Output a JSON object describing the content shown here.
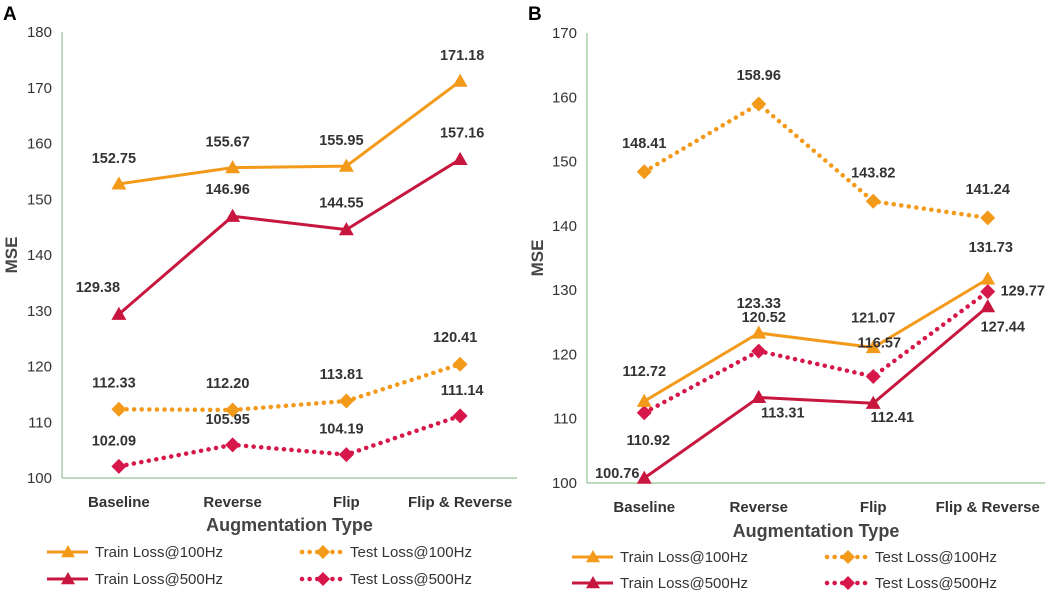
{
  "chart_data": [
    {
      "panel": "A",
      "type": "line",
      "categories": [
        "Baseline",
        "Reverse",
        "Flip",
        "Flip & Reverse"
      ],
      "xlabel": "Augmentation Type",
      "ylabel": "MSE",
      "ylim": [
        100,
        180
      ],
      "yticks": [
        100,
        110,
        120,
        130,
        140,
        150,
        160,
        170,
        180
      ],
      "legend_position": "bottom",
      "series": [
        {
          "name": "Train Loss@100Hz",
          "values": [
            152.75,
            155.67,
            155.95,
            171.18
          ],
          "labels": [
            "152.75",
            "155.67",
            "155.95",
            "171.18"
          ],
          "color": "#F39A1B",
          "style": "solid",
          "marker": "triangle"
        },
        {
          "name": "Test Loss@100Hz",
          "values": [
            112.33,
            112.2,
            113.81,
            120.41
          ],
          "labels": [
            "112.33",
            "112.20",
            "113.81",
            "120.41"
          ],
          "color": "#F39A1B",
          "style": "dotted",
          "marker": "diamond"
        },
        {
          "name": "Train Loss@500Hz",
          "values": [
            129.38,
            146.96,
            144.55,
            157.16
          ],
          "labels": [
            "129.38",
            "146.96",
            "144.55",
            "157.16"
          ],
          "color": "#C8173F",
          "style": "solid",
          "marker": "triangle"
        },
        {
          "name": "Test Loss@500Hz",
          "values": [
            102.09,
            105.95,
            104.19,
            111.14
          ],
          "labels": [
            "102.09",
            "105.95",
            "104.19",
            "111.14"
          ],
          "color": "#D6174A",
          "style": "dotted",
          "marker": "diamond"
        }
      ]
    },
    {
      "panel": "B",
      "type": "line",
      "categories": [
        "Baseline",
        "Reverse",
        "Flip",
        "Flip & Reverse"
      ],
      "xlabel": "Augmentation Type",
      "ylabel": "MSE",
      "ylim": [
        100,
        170
      ],
      "yticks": [
        100,
        110,
        120,
        130,
        140,
        150,
        160,
        170
      ],
      "legend_position": "bottom",
      "series": [
        {
          "name": "Train Loss@100Hz",
          "values": [
            112.72,
            123.33,
            121.07,
            131.73
          ],
          "labels": [
            "112.72",
            "123.33",
            "121.07",
            "131.73"
          ],
          "color": "#F39A1B",
          "style": "solid",
          "marker": "triangle"
        },
        {
          "name": "Test Loss@100Hz",
          "values": [
            148.41,
            158.96,
            143.82,
            141.24
          ],
          "labels": [
            "148.41",
            "158.96",
            "143.82",
            "141.24"
          ],
          "color": "#F39A1B",
          "style": "dotted",
          "marker": "diamond"
        },
        {
          "name": "Train Loss@500Hz",
          "values": [
            100.76,
            113.31,
            112.41,
            127.44
          ],
          "labels": [
            "100.76",
            "113.31",
            "112.41",
            "127.44"
          ],
          "color": "#C8173F",
          "style": "solid",
          "marker": "triangle"
        },
        {
          "name": "Test Loss@500Hz",
          "values": [
            110.92,
            120.52,
            116.57,
            129.77
          ],
          "labels": [
            "110.92",
            "120.52",
            "116.57",
            "129.77"
          ],
          "color": "#D6174A",
          "style": "dotted",
          "marker": "diamond"
        }
      ]
    }
  ]
}
